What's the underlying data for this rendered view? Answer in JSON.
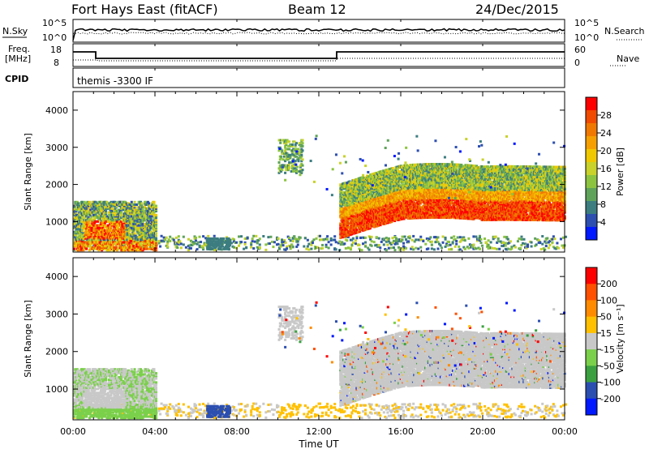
{
  "header": {
    "left_title": "Fort Hays East (fitACF)",
    "center_title": "Beam 12",
    "right_title": "24/Dec/2015"
  },
  "top_panels": {
    "nsky_label": "N.Sky",
    "nsky_ticks": [
      "10^5",
      "10^0"
    ],
    "nsearch_label": "N.Search",
    "nsearch_ticks": [
      "10^5",
      "10^0"
    ],
    "freq_label_1": "Freq.",
    "freq_label_2": "[MHz]",
    "freq_ticks": [
      "18",
      "8"
    ],
    "nave_label": "Nave",
    "nave_ticks": [
      "60",
      "0"
    ],
    "cpid_label": "CPID",
    "cpid_value": "themis -3300 IF"
  },
  "chart_data": [
    {
      "type": "heatmap",
      "panel": "power",
      "xlabel": "Time UT",
      "ylabel": "Slant Range [km]",
      "ylim": [
        180,
        4500
      ],
      "x_ticks": [
        "00:00",
        "04:00",
        "08:00",
        "12:00",
        "16:00",
        "20:00",
        "00:00"
      ],
      "y_ticks": [
        "1000",
        "2000",
        "3000",
        "4000"
      ],
      "colorbar": {
        "label": "Power [dB]",
        "ticks": [
          "4",
          "8",
          "12",
          "16",
          "20",
          "24",
          "28"
        ],
        "range": [
          0,
          32
        ],
        "colors": [
          "#0019ff",
          "#2d4fb0",
          "#3c7d80",
          "#5fa35a",
          "#8cc440",
          "#c8d22a",
          "#f0c800",
          "#f5a000",
          "#f07800",
          "#f04b00",
          "#ff0000"
        ]
      },
      "features": [
        {
          "t": [
            0.0,
            4.0
          ],
          "range": [
            200,
            1550
          ],
          "level": "mixed"
        },
        {
          "t": [
            10.0,
            11.2
          ],
          "range": [
            2300,
            3200
          ],
          "level": "low-mid"
        },
        {
          "t": [
            13.0,
            24.0
          ],
          "range": [
            1000,
            2600
          ],
          "level": "high"
        },
        {
          "t": [
            4.0,
            24.0
          ],
          "range": [
            200,
            600
          ],
          "level": "low"
        }
      ]
    },
    {
      "type": "heatmap",
      "panel": "velocity",
      "xlabel": "Time UT",
      "ylabel": "Slant Range [km]",
      "ylim": [
        180,
        4500
      ],
      "x_ticks": [
        "00:00",
        "04:00",
        "08:00",
        "12:00",
        "16:00",
        "20:00",
        "00:00"
      ],
      "y_ticks": [
        "1000",
        "2000",
        "3000",
        "4000"
      ],
      "colorbar": {
        "label": "Velocity [m s⁻¹]",
        "ticks": [
          "200",
          "100",
          "50",
          "15",
          "-15",
          "-50",
          "-100",
          "-200"
        ],
        "range": [
          -250,
          250
        ],
        "colors": [
          "#ff0000",
          "#ff5000",
          "#ff8c00",
          "#ffc000",
          "#c8c8c8",
          "#7ad04a",
          "#3aa040",
          "#2b4fb0",
          "#0019ff"
        ]
      },
      "features": [
        {
          "t": [
            0.0,
            4.0
          ],
          "range": [
            200,
            1500
          ],
          "value": "mixed ground scatter"
        },
        {
          "t": [
            10.0,
            11.2
          ],
          "range": [
            2300,
            3200
          ],
          "value": "ground scatter"
        },
        {
          "t": [
            13.0,
            24.0
          ],
          "range": [
            1000,
            2600
          ],
          "value": "ground scatter"
        },
        {
          "t": [
            4.0,
            24.0
          ],
          "range": [
            200,
            600
          ],
          "value": "low velocity"
        }
      ]
    }
  ]
}
